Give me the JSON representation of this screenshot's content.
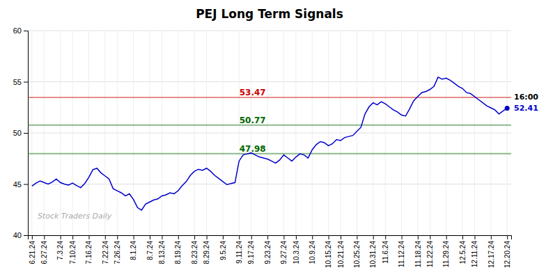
{
  "chart_data": {
    "type": "line",
    "title": "PEJ Long Term Signals",
    "categories": [
      "6.21.24",
      null,
      null,
      "6.27.24",
      null,
      null,
      null,
      "7.3.24",
      null,
      null,
      "7.10.24",
      null,
      null,
      null,
      "7.16.24",
      null,
      null,
      null,
      "7.22.24",
      null,
      null,
      "7.26.24",
      null,
      null,
      null,
      "8.1.24",
      null,
      null,
      null,
      "8.7.24",
      null,
      null,
      "8.13.24",
      null,
      null,
      null,
      "8.19.24",
      null,
      null,
      null,
      "8.23.24",
      null,
      null,
      "8.29.24",
      null,
      null,
      null,
      "9.5.24",
      null,
      null,
      null,
      "9.11.24",
      null,
      null,
      "9.17.24",
      null,
      null,
      null,
      "9.23.24",
      null,
      null,
      null,
      "9.27.24",
      null,
      null,
      "10.3.24",
      null,
      null,
      null,
      "10.9.24",
      null,
      null,
      null,
      "10.15.24",
      null,
      null,
      "10.21.24",
      null,
      null,
      null,
      "10.25.24",
      null,
      null,
      null,
      "10.31.24",
      null,
      null,
      "11.6.24",
      null,
      null,
      null,
      "11.12.24",
      null,
      null,
      null,
      "11.18.24",
      null,
      null,
      "11.22.24",
      null,
      null,
      null,
      "11.29.24",
      null,
      null,
      null,
      "12.5.24",
      null,
      null,
      "12.11.24",
      null,
      null,
      null,
      "12.17.24",
      null,
      null,
      null,
      "12.20.24"
    ],
    "values": [
      44.8,
      45.1,
      45.3,
      45.15,
      45.0,
      45.2,
      45.5,
      45.15,
      45.0,
      44.9,
      45.1,
      44.85,
      44.65,
      45.05,
      45.65,
      46.4,
      46.55,
      46.1,
      45.8,
      45.5,
      44.55,
      44.35,
      44.15,
      43.85,
      44.05,
      43.5,
      42.7,
      42.45,
      43.05,
      43.25,
      43.45,
      43.55,
      43.85,
      43.95,
      44.15,
      44.05,
      44.35,
      44.85,
      45.25,
      45.85,
      46.25,
      46.45,
      46.35,
      46.55,
      46.25,
      45.85,
      45.55,
      45.25,
      44.95,
      45.05,
      45.15,
      47.25,
      47.85,
      47.95,
      48.05,
      47.85,
      47.65,
      47.55,
      47.45,
      47.25,
      47.05,
      47.35,
      47.85,
      47.55,
      47.25,
      47.65,
      47.95,
      47.85,
      47.55,
      48.35,
      48.85,
      49.15,
      49.05,
      48.75,
      48.95,
      49.35,
      49.25,
      49.55,
      49.65,
      49.75,
      50.15,
      50.55,
      51.85,
      52.55,
      52.95,
      52.75,
      53.05,
      52.85,
      52.55,
      52.25,
      52.05,
      51.75,
      51.65,
      52.35,
      53.15,
      53.55,
      53.95,
      54.05,
      54.25,
      54.55,
      55.45,
      55.25,
      55.35,
      55.15,
      54.85,
      54.55,
      54.35,
      53.95,
      53.85,
      53.55,
      53.25,
      52.95,
      52.65,
      52.45,
      52.25,
      51.85,
      52.15,
      52.41
    ],
    "color": "#0000cc",
    "ylim": [
      40,
      60
    ],
    "yticks": [
      40,
      45,
      50,
      55,
      60
    ],
    "grid": true,
    "reference_lines": [
      {
        "value": 53.47,
        "color": "#cc0000"
      },
      {
        "value": 50.77,
        "color": "#006600"
      },
      {
        "value": 47.98,
        "color": "#006600"
      }
    ],
    "annotations": [
      "16:00",
      "Stock Traders Daily"
    ]
  }
}
